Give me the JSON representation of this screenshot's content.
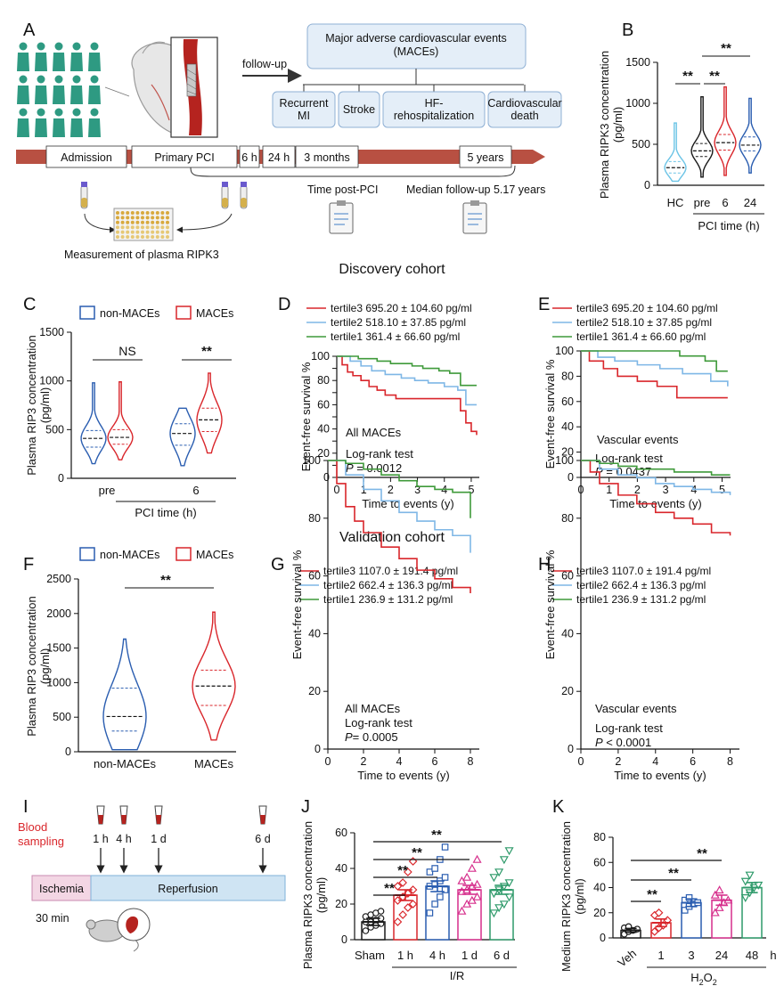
{
  "colors": {
    "black": "#1a1a1a",
    "blue": "#2a5db0",
    "red": "#d9262b",
    "lightblue": "#7fb7e6",
    "green": "#3f9a3a",
    "pink": "#d62f8c",
    "teal": "#2e9a6a",
    "arrow": "#9b2d2d",
    "timeline": "#b85042",
    "ischemia": "#f3d6e4",
    "reperfusion": "#cfe4f3",
    "cyanHC": "#6cc4e6"
  },
  "sections": {
    "discovery": "Discovery cohort",
    "validation": "Validation cohort"
  },
  "panelA": {
    "label": "A",
    "followup": "follow-up",
    "maces_title": "Major adverse cardiovascular events\n(MACEs)",
    "events": [
      "Recurrent\nMI",
      "Stroke",
      "HF-\nrehospitalization",
      "Cardiovascular\ndeath"
    ],
    "timeline": [
      "Admission",
      "Primary PCI",
      "6 h",
      "24 h",
      "3 months",
      "5 years"
    ],
    "time_post": "Time post-PCI",
    "median": "Median follow-up 5.17 years",
    "measurement": "Measurement of plasma RIPK3"
  },
  "panelI": {
    "label": "I",
    "blood": "Blood\nsampling",
    "times": [
      "1 h",
      "4 h",
      "1 d",
      "6 d"
    ],
    "ischemia": "Ischemia",
    "reperfusion": "Reperfusion",
    "duration": "30 min"
  },
  "chart_data": [
    {
      "id": "B",
      "type": "violin",
      "label": "B",
      "ylabel": "Plasma RIPK3 concentration\n(pg/ml)",
      "ylim": [
        0,
        1500
      ],
      "yticks": [
        0,
        500,
        1000,
        1500
      ],
      "categories": [
        "HC",
        "pre",
        "6",
        "24"
      ],
      "xgroup": "PCI time (h)",
      "medians": [
        215,
        420,
        520,
        490
      ],
      "quartiles": [
        [
          150,
          290
        ],
        [
          350,
          510
        ],
        [
          430,
          620
        ],
        [
          420,
          590
        ]
      ],
      "ranges": [
        [
          50,
          760
        ],
        [
          100,
          1080
        ],
        [
          120,
          1200
        ],
        [
          150,
          1060
        ]
      ],
      "colors": [
        "#6cc4e6",
        "#1a1a1a",
        "#d9262b",
        "#2a5db0"
      ],
      "sig": [
        {
          "from": 1,
          "to": 2,
          "text": "**",
          "level": 0
        },
        {
          "from": 0,
          "to": 1,
          "text": "**",
          "level": 0
        },
        {
          "from": 1,
          "to": 3,
          "text": "**",
          "level": 1
        }
      ]
    },
    {
      "id": "C",
      "type": "violin",
      "label": "C",
      "ylabel": "Plasma RIP3 concentration\n(pg/ml)",
      "ylim": [
        0,
        1500
      ],
      "yticks": [
        0,
        500,
        1000,
        1500
      ],
      "legend": [
        "non-MACEs",
        "MACEs"
      ],
      "groups": [
        "pre",
        "6"
      ],
      "xgroup": "PCI time (h)",
      "series": [
        {
          "name": "non-MACEs",
          "medians": [
            410,
            460
          ],
          "quartiles": [
            [
              320,
              490
            ],
            [
              340,
              560
            ]
          ],
          "ranges": [
            [
              150,
              980
            ],
            [
              130,
              720
            ]
          ]
        },
        {
          "name": "MACEs",
          "medians": [
            420,
            600
          ],
          "quartiles": [
            [
              350,
              500
            ],
            [
              480,
              720
            ]
          ],
          "ranges": [
            [
              190,
              990
            ],
            [
              260,
              1080
            ]
          ]
        }
      ],
      "sig": [
        "NS",
        "**"
      ]
    },
    {
      "id": "F",
      "type": "violin",
      "label": "F",
      "ylabel": "Plasma RIP3 concentration\n(pg/ml)",
      "ylim": [
        0,
        2500
      ],
      "yticks": [
        0,
        500,
        1000,
        1500,
        2000,
        2500
      ],
      "legend": [
        "non-MACEs",
        "MACEs"
      ],
      "categories": [
        "non-MACEs",
        "MACEs"
      ],
      "medians": [
        510,
        950
      ],
      "quartiles": [
        [
          300,
          920
        ],
        [
          670,
          1180
        ]
      ],
      "ranges": [
        [
          30,
          1630
        ],
        [
          170,
          2020
        ]
      ],
      "sig": "**"
    },
    {
      "id": "D",
      "type": "line",
      "label": "D",
      "ylabel": "Event-free survival %",
      "xlabel": "Time to events (y)",
      "xlim": [
        0,
        5.3
      ],
      "ylim": [
        0,
        100
      ],
      "xticks": [
        0,
        1,
        2,
        3,
        4,
        5
      ],
      "yticks": [
        0,
        10,
        20,
        30,
        40,
        50,
        60,
        70,
        80,
        90,
        100
      ],
      "series": [
        {
          "name": "tertile3 695.20 ± 104.60 pg/ml",
          "color": "#d9262b",
          "x": [
            0,
            0.2,
            0.4,
            0.6,
            0.9,
            1.2,
            1.5,
            1.8,
            2.2,
            2.6,
            3.0,
            4.3,
            4.6,
            4.8,
            5.0,
            5.2
          ],
          "y": [
            100,
            93,
            87,
            84,
            80,
            75,
            72,
            68,
            65,
            65,
            65,
            65,
            55,
            45,
            38,
            35
          ]
        },
        {
          "name": "tertile2 518.10 ± 37.85 pg/ml",
          "color": "#7fb7e6",
          "x": [
            0,
            0.5,
            0.9,
            1.3,
            1.8,
            2.4,
            2.9,
            3.4,
            4.0,
            4.5,
            4.8,
            5.2
          ],
          "y": [
            100,
            96,
            92,
            88,
            85,
            82,
            80,
            78,
            75,
            72,
            60,
            60
          ]
        },
        {
          "name": "tertile1 361.4 ± 66.60 pg/ml",
          "color": "#3f9a3a",
          "x": [
            0,
            0.8,
            1.5,
            2.0,
            2.8,
            3.2,
            3.8,
            4.2,
            4.6,
            5.2
          ],
          "y": [
            100,
            98,
            96,
            94,
            92,
            90,
            88,
            86,
            76,
            76
          ]
        }
      ],
      "annotations": [
        "All MACEs",
        "Log-rank test",
        "P = 0.0012"
      ]
    },
    {
      "id": "E",
      "type": "line",
      "label": "E",
      "ylabel": "Event-free survival %",
      "xlabel": "Time to events (y)",
      "xlim": [
        0,
        5.3
      ],
      "ylim": [
        0,
        100
      ],
      "xticks": [
        0,
        1,
        2,
        3,
        4,
        5
      ],
      "yticks": [
        0,
        20,
        40,
        60,
        80,
        100
      ],
      "series": [
        {
          "name": "tertile3 695.20 ± 104.60 pg/ml",
          "color": "#d9262b",
          "x": [
            0,
            0.3,
            0.8,
            1.3,
            2.0,
            2.7,
            3.4,
            5.2
          ],
          "y": [
            100,
            92,
            86,
            80,
            76,
            72,
            63,
            63
          ]
        },
        {
          "name": "tertile2 518.10 ± 37.85 pg/ml",
          "color": "#7fb7e6",
          "x": [
            0,
            0.6,
            1.2,
            2.0,
            2.8,
            3.6,
            4.6,
            5.1,
            5.2
          ],
          "y": [
            100,
            95,
            92,
            89,
            86,
            82,
            76,
            76,
            72
          ]
        },
        {
          "name": "tertile1 361.4 ± 66.60 pg/ml",
          "color": "#3f9a3a",
          "x": [
            0,
            2.5,
            3.5,
            4.4,
            4.8,
            5.2
          ],
          "y": [
            100,
            100,
            96,
            92,
            84,
            84
          ]
        }
      ],
      "annotations": [
        "Vascular events",
        "Log-rank test",
        "P = 0.0437"
      ]
    },
    {
      "id": "G",
      "type": "line",
      "label": "G",
      "ylabel": "Event-free survival %",
      "xlabel": "Time to events (y)",
      "xlim": [
        0,
        8.5
      ],
      "ylim": [
        0,
        100
      ],
      "xticks": [
        0,
        2,
        4,
        6,
        8
      ],
      "yticks": [
        0,
        20,
        40,
        60,
        80,
        100
      ],
      "series": [
        {
          "name": "tertile3 1107.0 ± 191.4 pg/ml",
          "color": "#d9262b",
          "x": [
            0,
            0.5,
            1,
            1.5,
            2,
            3,
            4,
            5,
            6,
            7,
            8
          ],
          "y": [
            100,
            92,
            84,
            79,
            75,
            70,
            66,
            62,
            59,
            56,
            54
          ]
        },
        {
          "name": "tertile2 662.4 ± 136.3 pg/ml",
          "color": "#7fb7e6",
          "x": [
            0,
            1,
            2,
            3,
            4,
            5,
            6,
            7,
            8
          ],
          "y": [
            100,
            95,
            90,
            86,
            82,
            79,
            76,
            74,
            68
          ]
        },
        {
          "name": "tertile1 236.9 ± 131.2 pg/ml",
          "color": "#3f9a3a",
          "x": [
            0,
            1,
            2,
            3,
            4,
            5,
            6,
            7,
            8
          ],
          "y": [
            100,
            99,
            97,
            95,
            93,
            91,
            90,
            89,
            80
          ]
        }
      ],
      "annotations": [
        "All MACEs",
        "Log-rank test",
        "P= 0.0005"
      ]
    },
    {
      "id": "H",
      "type": "line",
      "label": "H",
      "ylabel": "Event-free survival %",
      "xlabel": "Time to events (y)",
      "xlim": [
        0,
        8.5
      ],
      "ylim": [
        0,
        100
      ],
      "xticks": [
        0,
        2,
        4,
        6,
        8
      ],
      "yticks": [
        0,
        20,
        40,
        60,
        80,
        100
      ],
      "series": [
        {
          "name": "tertile3 1107.0 ± 191.4 pg/ml",
          "color": "#d9262b",
          "x": [
            0,
            0.5,
            1,
            2,
            3,
            4,
            5,
            6,
            7,
            8
          ],
          "y": [
            100,
            96,
            92,
            88,
            85,
            82,
            80,
            78,
            75,
            74
          ]
        },
        {
          "name": "tertile2 662.4 ± 136.3 pg/ml",
          "color": "#7fb7e6",
          "x": [
            0,
            1,
            2,
            3,
            4,
            5,
            6,
            7,
            8
          ],
          "y": [
            100,
            97,
            95,
            94,
            92,
            91,
            90,
            89,
            88
          ]
        },
        {
          "name": "tertile1 236.9 ± 131.2 pg/ml",
          "color": "#3f9a3a",
          "x": [
            0,
            1,
            2,
            3,
            4,
            5,
            6,
            7,
            8
          ],
          "y": [
            100,
            99,
            98,
            97,
            97,
            96,
            96,
            95,
            95
          ]
        }
      ],
      "annotations": [
        "Vascular events",
        "Log-rank test",
        "P < 0.0001"
      ]
    },
    {
      "id": "J",
      "type": "bar",
      "label": "J",
      "ylabel": "Plasma RIPK3 concentration\n(pg/ml)",
      "ylim": [
        0,
        60
      ],
      "yticks": [
        0,
        20,
        40,
        60
      ],
      "categories": [
        "Sham",
        "1 h",
        "4 h",
        "1 d",
        "6 d"
      ],
      "xgroup": "I/R",
      "values": [
        10,
        25,
        30,
        28,
        28
      ],
      "errors": [
        2,
        3,
        3,
        2.5,
        2.5
      ],
      "points": [
        [
          5,
          7,
          8,
          9,
          10,
          10,
          11,
          12,
          13,
          14,
          15,
          16
        ],
        [
          10,
          14,
          18,
          20,
          22,
          24,
          26,
          28,
          30,
          32,
          38,
          44
        ],
        [
          15,
          20,
          24,
          28,
          30,
          31,
          33,
          35,
          38,
          40,
          45,
          52
        ],
        [
          16,
          20,
          22,
          24,
          27,
          28,
          30,
          31,
          33,
          35,
          40,
          45
        ],
        [
          15,
          18,
          20,
          24,
          26,
          28,
          30,
          32,
          35,
          38,
          45,
          50
        ]
      ],
      "colors": [
        "#1a1a1a",
        "#d9262b",
        "#2a5db0",
        "#d62f8c",
        "#2e9a6a"
      ],
      "sig": [
        "**",
        "**",
        "**",
        "**"
      ]
    },
    {
      "id": "K",
      "type": "bar",
      "label": "K",
      "ylabel": "Medium RIPK3 concentration\n(pg/ml)",
      "ylim": [
        0,
        80
      ],
      "yticks": [
        0,
        20,
        40,
        60,
        80
      ],
      "categories": [
        "Veh",
        "1",
        "3",
        "24",
        "48"
      ],
      "xunit": "h",
      "xgroup": "H2O2",
      "values": [
        6,
        12,
        28,
        30,
        40
      ],
      "errors": [
        1.5,
        3,
        3,
        4,
        4
      ],
      "points": [
        [
          3,
          5,
          6,
          7,
          8,
          9
        ],
        [
          5,
          8,
          10,
          14,
          18,
          20
        ],
        [
          22,
          25,
          27,
          28,
          30,
          32
        ],
        [
          20,
          24,
          28,
          30,
          34,
          38
        ],
        [
          32,
          36,
          40,
          42,
          45,
          50
        ]
      ],
      "colors": [
        "#1a1a1a",
        "#d9262b",
        "#2a5db0",
        "#d62f8c",
        "#2e9a6a"
      ],
      "sig": [
        "**",
        "**",
        "**"
      ]
    }
  ]
}
